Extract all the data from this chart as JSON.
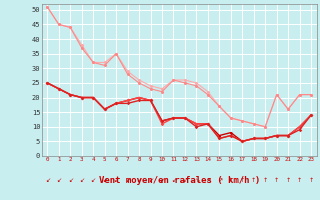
{
  "xlabel": "Vent moyen/en rafales ( km/h )",
  "background_color": "#c8eef0",
  "grid_color": "#ffffff",
  "xlim": [
    -0.5,
    23.5
  ],
  "ylim": [
    0,
    52
  ],
  "yticks": [
    0,
    5,
    10,
    15,
    20,
    25,
    30,
    35,
    40,
    45,
    50
  ],
  "xticks": [
    0,
    1,
    2,
    3,
    4,
    5,
    6,
    7,
    8,
    9,
    10,
    11,
    12,
    13,
    14,
    15,
    16,
    17,
    18,
    19,
    20,
    21,
    22,
    23
  ],
  "line1_x": [
    0,
    1,
    2,
    3,
    4,
    5,
    6,
    7,
    8,
    9,
    10,
    11,
    12,
    13,
    14,
    15,
    16,
    17,
    18,
    19,
    20,
    21,
    22,
    23
  ],
  "line1_y": [
    51,
    45,
    44,
    38,
    32,
    32,
    35,
    29,
    26,
    24,
    23,
    26,
    26,
    25,
    22,
    17,
    13,
    12,
    11,
    10,
    21,
    16,
    21,
    21
  ],
  "line1_color": "#ffaaaa",
  "line2_x": [
    0,
    1,
    2,
    3,
    4,
    5,
    6,
    7,
    8,
    9,
    10,
    11,
    12,
    13,
    14,
    15,
    16,
    17,
    18,
    19,
    20,
    21,
    22,
    23
  ],
  "line2_y": [
    51,
    45,
    44,
    37,
    32,
    31,
    35,
    28,
    25,
    23,
    22,
    26,
    25,
    24,
    21,
    17,
    13,
    12,
    11,
    10,
    21,
    16,
    21,
    21
  ],
  "line2_color": "#ff8888",
  "line3_x": [
    0,
    1,
    2,
    3,
    4,
    5,
    6,
    7,
    8,
    9,
    10,
    11,
    12,
    13,
    14,
    15,
    16,
    17,
    18,
    19,
    20,
    21,
    22,
    23
  ],
  "line3_y": [
    25,
    23,
    21,
    20,
    20,
    16,
    18,
    19,
    20,
    19,
    12,
    13,
    13,
    11,
    11,
    7,
    8,
    5,
    6,
    6,
    7,
    7,
    10,
    14
  ],
  "line3_color": "#cc0000",
  "line4_x": [
    0,
    1,
    2,
    3,
    4,
    5,
    6,
    7,
    8,
    9,
    10,
    11,
    12,
    13,
    14,
    15,
    16,
    17,
    18,
    19,
    20,
    21,
    22,
    23
  ],
  "line4_y": [
    25,
    23,
    21,
    20,
    20,
    16,
    18,
    19,
    20,
    19,
    11,
    13,
    13,
    11,
    11,
    6,
    7,
    5,
    6,
    6,
    7,
    7,
    10,
    14
  ],
  "line4_color": "#ff4444",
  "line5_x": [
    0,
    1,
    2,
    3,
    4,
    5,
    6,
    7,
    8,
    9,
    10,
    11,
    12,
    13,
    14,
    15,
    16,
    17,
    18,
    19,
    20,
    21,
    22,
    23
  ],
  "line5_y": [
    25,
    23,
    21,
    20,
    20,
    16,
    18,
    18,
    19,
    19,
    12,
    13,
    13,
    10,
    11,
    6,
    7,
    5,
    6,
    6,
    7,
    7,
    9,
    14
  ],
  "line5_color": "#dd2222",
  "arrow_directions": [
    "↙",
    "↙",
    "↙",
    "↙",
    "↙",
    "↙",
    "↙",
    "↙",
    "↙",
    "↙",
    "↙",
    "↙",
    "↙",
    "↘",
    "↗",
    "↗",
    "↑",
    "↑",
    "↑",
    "↑",
    "↑",
    "↑",
    "↑",
    "↑"
  ]
}
